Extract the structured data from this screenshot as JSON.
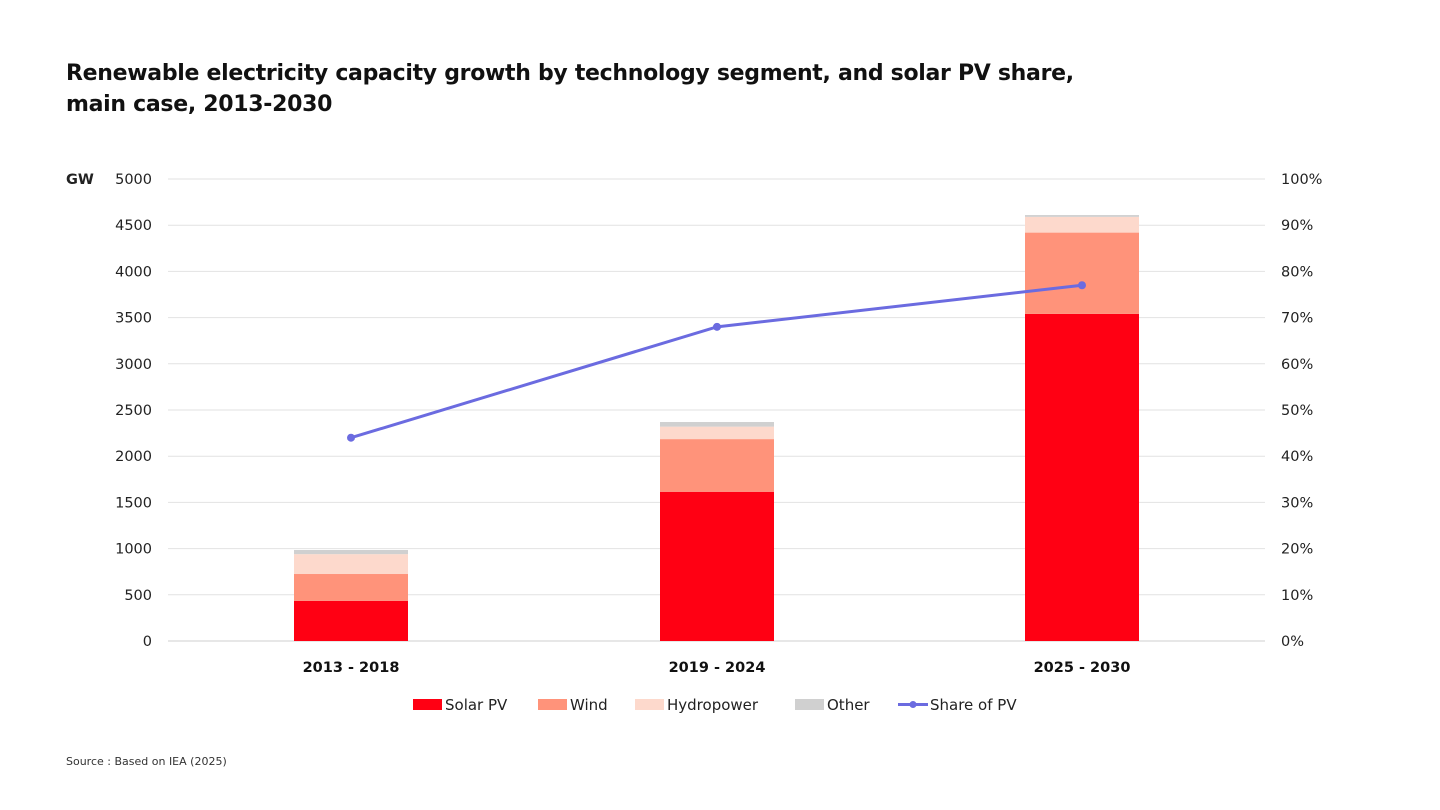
{
  "title_line1": "Renewable electricity capacity growth by technology segment, and solar PV share,",
  "title_line2": "main case, 2013-2030",
  "source": "Source : Based on IEA (2025)",
  "chart_data": {
    "type": "bar",
    "stacked": true,
    "categories": [
      "2013 - 2018",
      "2019 - 2024",
      "2025 - 2030"
    ],
    "series": [
      {
        "name": "Solar PV",
        "color": "#ff0013",
        "values": [
          435,
          1615,
          3540
        ]
      },
      {
        "name": "Wind",
        "color": "#ff937a",
        "values": [
          290,
          570,
          880
        ]
      },
      {
        "name": "Hydropower",
        "color": "#fdd9cc",
        "values": [
          215,
          135,
          170
        ]
      },
      {
        "name": "Other",
        "color": "#d0d0d0",
        "values": [
          45,
          50,
          20
        ]
      }
    ],
    "line_series": {
      "name": "Share of PV",
      "color": "#6b6be0",
      "axis": "right",
      "values": [
        44,
        68,
        77
      ]
    },
    "ylabel": "GW",
    "ylim": [
      0,
      5000
    ],
    "yticks": [
      "0",
      "500",
      "1000",
      "1500",
      "2000",
      "2500",
      "3000",
      "3500",
      "4000",
      "4500",
      "5000"
    ],
    "y2lim": [
      0,
      100
    ],
    "y2ticks": [
      "0%",
      "10%",
      "20%",
      "30%",
      "40%",
      "50%",
      "60%",
      "70%",
      "80%",
      "90%",
      "100%"
    ],
    "grid": true,
    "legend": "bottom"
  }
}
